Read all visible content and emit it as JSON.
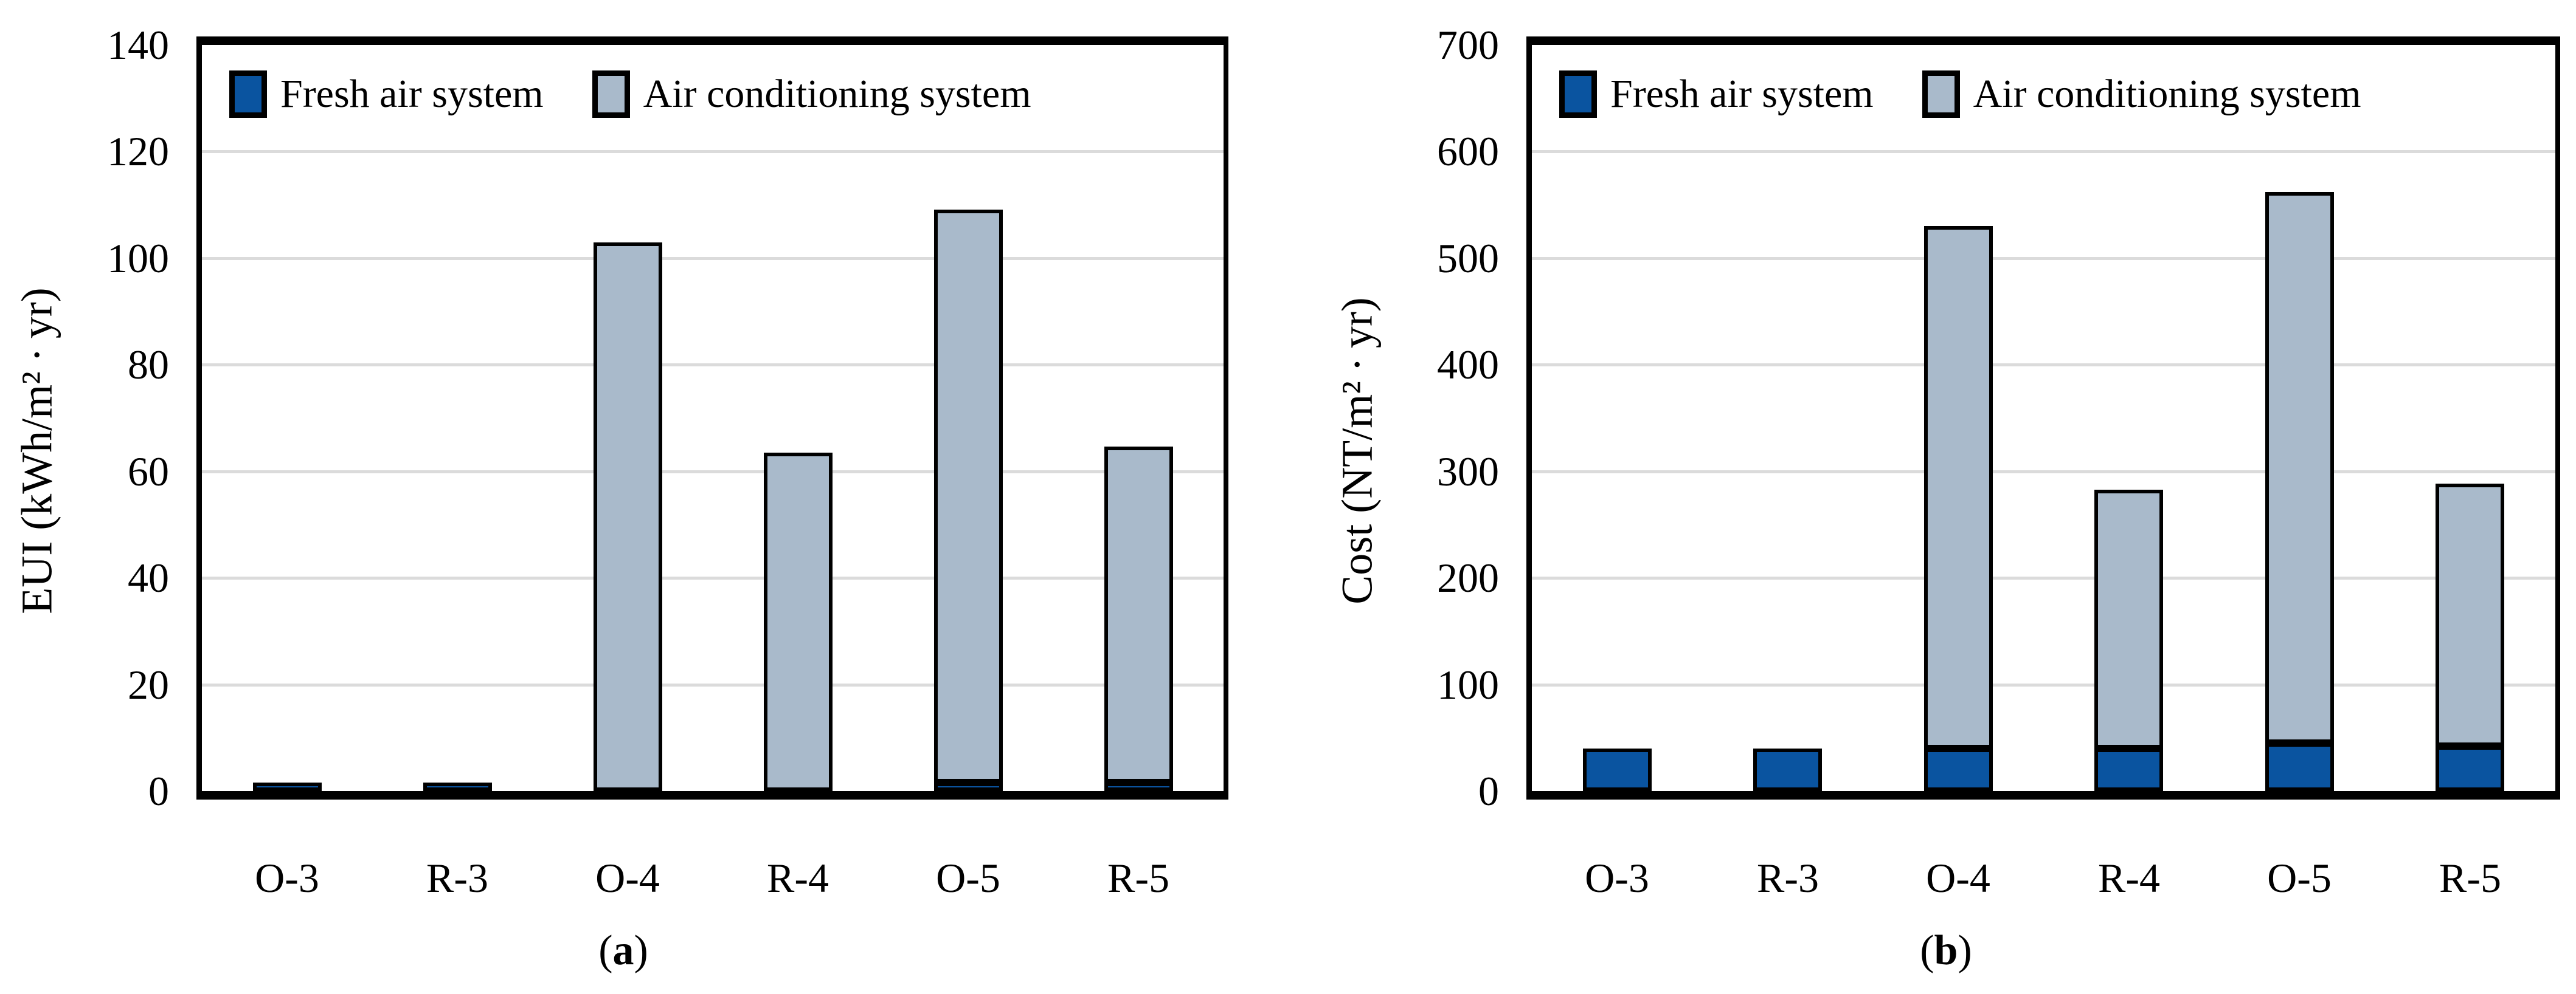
{
  "figure": {
    "colors": {
      "fresh_air": "#0a54a0",
      "air_conditioning": "#a9bacb",
      "gridline": "#dbdbdb",
      "axis": "#000000",
      "background": "#ffffff"
    }
  },
  "chart_data": [
    {
      "type": "bar",
      "stacked": true,
      "title": "",
      "categories": [
        "O-3",
        "R-3",
        "O-4",
        "R-4",
        "O-5",
        "R-5"
      ],
      "series": [
        {
          "name": "Fresh air system",
          "color": "#0a54a0",
          "values": [
            1,
            1,
            0,
            0,
            1.5,
            1.5
          ]
        },
        {
          "name": "Air conditioning system",
          "color": "#a9bacb",
          "values": [
            0,
            0,
            103,
            63.5,
            107.5,
            63
          ]
        }
      ],
      "totals": [
        1,
        1,
        103,
        63.5,
        109,
        64.5
      ],
      "xlabel": "",
      "ylabel": "EUI (kWh/m² ∙ yr)",
      "ylim": [
        0,
        140
      ],
      "ytick_step": 20,
      "grid": true,
      "legend_position": "top-inside",
      "caption": "(a)",
      "caption_parts": {
        "open": "(",
        "letter": "a",
        "close": ")"
      }
    },
    {
      "type": "bar",
      "stacked": true,
      "title": "",
      "categories": [
        "O-3",
        "R-3",
        "O-4",
        "R-4",
        "O-5",
        "R-5"
      ],
      "series": [
        {
          "name": "Fresh air system",
          "color": "#0a54a0",
          "values": [
            40,
            40,
            40,
            40,
            45,
            42
          ]
        },
        {
          "name": "Air conditioning system",
          "color": "#a9bacb",
          "values": [
            0,
            0,
            490,
            243,
            517,
            246
          ]
        }
      ],
      "totals": [
        40,
        40,
        530,
        283,
        562,
        288
      ],
      "xlabel": "",
      "ylabel": "Cost (NT/m² ∙ yr)",
      "ylim": [
        0,
        700
      ],
      "ytick_step": 100,
      "grid": true,
      "legend_position": "top-inside",
      "caption": "(b)",
      "caption_parts": {
        "open": "(",
        "letter": "b",
        "close": ")"
      }
    }
  ]
}
